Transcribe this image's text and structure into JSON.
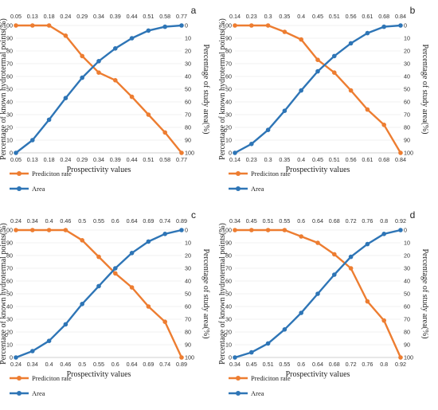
{
  "chart_data": [
    {
      "type": "line",
      "panel_label": "a",
      "x_tick_labels": [
        "0.05",
        "0.13",
        "0.18",
        "0.24",
        "0.29",
        "0.34",
        "0.39",
        "0.44",
        "0.51",
        "0.58",
        "0.77"
      ],
      "xlabel": "Prospectivity values",
      "ylabel_left": "Percentage of known hydrotermal points(%)",
      "ylabel_right": "Percentage of study area(%)",
      "ylim_left": [
        0,
        100
      ],
      "ylim_right": [
        100,
        0
      ],
      "y_ticks_left": [
        "0",
        "10",
        "20",
        "30",
        "40",
        "50",
        "60",
        "70",
        "80",
        "90",
        "100"
      ],
      "y_ticks_right": [
        "0",
        "10",
        "20",
        "30",
        "40",
        "50",
        "60",
        "70",
        "80",
        "90",
        "100"
      ],
      "series": [
        {
          "name": "Prediciton rate",
          "color": "#ED7D31",
          "values": [
            100,
            100,
            100,
            92,
            76,
            63,
            57,
            44,
            30,
            16,
            0
          ]
        },
        {
          "name": "Area",
          "color": "#2E75B6",
          "values": [
            0,
            10,
            26,
            43,
            59,
            72,
            82,
            90,
            96,
            99,
            100
          ]
        }
      ]
    },
    {
      "type": "line",
      "panel_label": "b",
      "x_tick_labels": [
        "0.14",
        "0.23",
        "0.3",
        "0.35",
        "0.4",
        "0.45",
        "0.51",
        "0.56",
        "0.61",
        "0.68",
        "0.84"
      ],
      "xlabel": "Prospectivity values",
      "ylabel_left": "Percentage of known hydrotermal points(%)",
      "ylabel_right": "Percentage of study area(%)",
      "ylim_left": [
        0,
        100
      ],
      "ylim_right": [
        100,
        0
      ],
      "y_ticks_left": [
        "0",
        "10",
        "20",
        "30",
        "40",
        "50",
        "60",
        "70",
        "80",
        "90",
        "100"
      ],
      "y_ticks_right": [
        "0",
        "10",
        "20",
        "30",
        "40",
        "50",
        "60",
        "70",
        "80",
        "90",
        "100"
      ],
      "series": [
        {
          "name": "Prediciton rate",
          "color": "#ED7D31",
          "values": [
            100,
            100,
            100,
            95,
            89,
            73,
            63,
            49,
            34,
            22,
            0
          ]
        },
        {
          "name": "Area",
          "color": "#2E75B6",
          "values": [
            0,
            7,
            18,
            33,
            49,
            64,
            76,
            86,
            94,
            99,
            100
          ]
        }
      ]
    },
    {
      "type": "line",
      "panel_label": "c",
      "x_tick_labels": [
        "0.24",
        "0.34",
        "0.4",
        "0.46",
        "0.5",
        "0.55",
        "0.6",
        "0.64",
        "0.69",
        "0.74",
        "0.89"
      ],
      "xlabel": "Prospectivity values",
      "ylabel_left": "Percentage of known hydrotermal points(%)",
      "ylabel_right": "Percentage of study area(%)",
      "ylim_left": [
        0,
        100
      ],
      "ylim_right": [
        100,
        0
      ],
      "y_ticks_left": [
        "0",
        "10",
        "20",
        "30",
        "40",
        "50",
        "60",
        "70",
        "80",
        "90",
        "100"
      ],
      "y_ticks_right": [
        "0",
        "10",
        "20",
        "30",
        "40",
        "50",
        "60",
        "70",
        "80",
        "90",
        "100"
      ],
      "series": [
        {
          "name": "Prediciton rate",
          "color": "#ED7D31",
          "values": [
            100,
            100,
            100,
            100,
            92,
            79,
            66,
            55,
            40,
            28,
            0
          ]
        },
        {
          "name": "Area",
          "color": "#2E75B6",
          "values": [
            0,
            5,
            13,
            26,
            42,
            56,
            70,
            82,
            91,
            97,
            100
          ]
        }
      ]
    },
    {
      "type": "line",
      "panel_label": "d",
      "x_tick_labels": [
        "0.34",
        "0.45",
        "0.51",
        "0.55",
        "0.6",
        "0.64",
        "0.68",
        "0.72",
        "0.76",
        "0.8",
        "0.92"
      ],
      "xlabel": "Prospectivity values",
      "ylabel_left": "Percentage of known hydrotermal points(%)",
      "ylabel_right": "Percentage of study area(%)",
      "ylim_left": [
        0,
        100
      ],
      "ylim_right": [
        100,
        0
      ],
      "y_ticks_left": [
        "0",
        "10",
        "20",
        "30",
        "40",
        "50",
        "60",
        "70",
        "80",
        "90",
        "100"
      ],
      "y_ticks_right": [
        "0",
        "10",
        "20",
        "30",
        "40",
        "50",
        "60",
        "70",
        "80",
        "90",
        "100"
      ],
      "series": [
        {
          "name": "Prediciton rate",
          "color": "#ED7D31",
          "values": [
            100,
            100,
            100,
            100,
            95,
            90,
            81,
            70,
            44,
            29,
            0
          ]
        },
        {
          "name": "Area",
          "color": "#2E75B6",
          "values": [
            0,
            4,
            11,
            22,
            35,
            50,
            65,
            79,
            89,
            97,
            100
          ]
        }
      ]
    }
  ]
}
